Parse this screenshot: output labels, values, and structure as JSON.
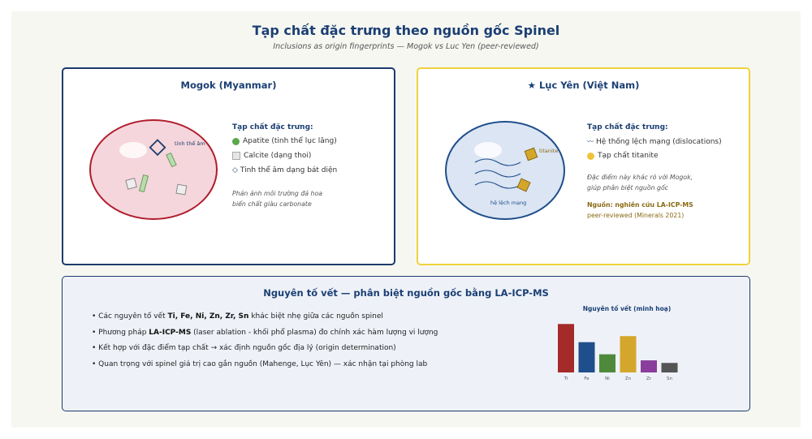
{
  "header": {
    "title": "Tạp chất đặc trưng theo nguồn gốc Spinel",
    "subtitle": "Inclusions as origin fingerprints — Mogok vs Luc Yen (peer-reviewed)"
  },
  "mogok": {
    "title": "Mogok (Myanmar)",
    "gem_label": "tinh thể âm",
    "heading": "Tạp chất đặc trưng:",
    "items": [
      "Apatite (tinh thể lục lăng)",
      "Calcite (dạng thoi)",
      "Tinh thể âm dạng bát diện"
    ],
    "item_icons": [
      "green-dot-icon",
      "gray-square-icon",
      "octahedron-icon"
    ],
    "octa_glyph": "◇",
    "note_line1": "Phản ánh môi trường đá hoa",
    "note_line2": "biến chất giàu carbonate"
  },
  "lucyen": {
    "title": "★ Lục Yên (Việt Nam)",
    "gem_label_titanite": "titanite",
    "gem_label_disloc": "hệ lệch mạng",
    "heading": "Tạp chất đặc trưng:",
    "items": [
      "Hệ thống lệch mạng (dislocations)",
      "Tạp chất titanite"
    ],
    "wave_glyph": "〰",
    "note_line1": "Đặc điểm này khác rõ với Mogok,",
    "note_line2": "giúp phân biệt nguồn gốc",
    "source_bold": "Nguồn: nghiên cứu LA-ICP-MS",
    "source_line2": "peer-reviewed (Minerals 2021)"
  },
  "trace": {
    "title": "Nguyên tố vết — phân biệt nguồn gốc bằng LA-ICP-MS",
    "bullets": [
      {
        "pre": "• Các nguyên tố vết ",
        "bold": "Ti, Fe, Ni, Zn, Zr, Sn",
        "post": " khác biệt nhẹ giữa các nguồn spinel"
      },
      {
        "pre": "• Phương pháp ",
        "bold": "LA-ICP-MS",
        "post": " (laser ablation - khối phổ plasma) đo chính xác hàm lượng vi lượng"
      },
      {
        "pre": "• Kết hợp với đặc điểm tạp chất → xác định nguồn gốc địa lý (origin determination)",
        "bold": "",
        "post": ""
      },
      {
        "pre": "• Quan trọng với spinel giá trị cao gắn nguồn (Mahenge, Lục Yên) — xác nhận tại phòng lab",
        "bold": "",
        "post": ""
      }
    ]
  },
  "chart_data": {
    "type": "bar",
    "title": "Nguyên tố vết (minh hoạ)",
    "categories": [
      "Ti",
      "Fe",
      "Ni",
      "Zn",
      "Zr",
      "Sn"
    ],
    "values": [
      56,
      35,
      21,
      42,
      14,
      11
    ],
    "colors": [
      "#a52a2a",
      "#1f4e8c",
      "#4f8a3c",
      "#d4a72c",
      "#8a3d9c",
      "#555555"
    ],
    "ylim": [
      0,
      60
    ],
    "grid": false,
    "legend": "none"
  }
}
